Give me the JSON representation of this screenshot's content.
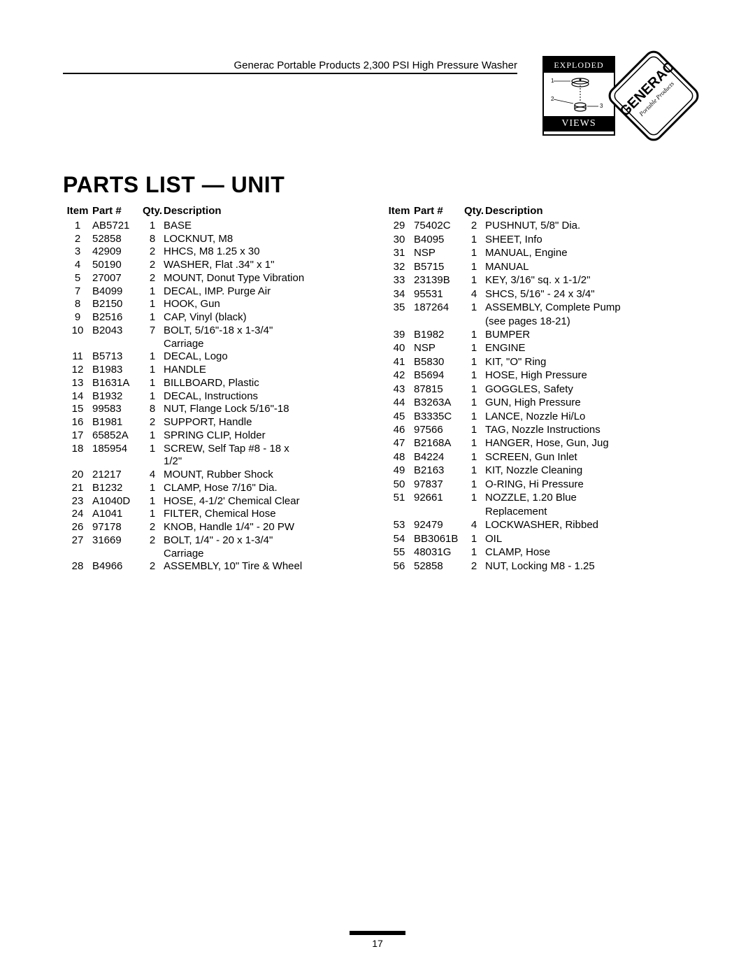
{
  "header": {
    "product_line": "Generac Portable Products 2,300 PSI High Pressure Washer",
    "badge_exploded_top": "EXPLODED",
    "badge_exploded_bottom": "VIEWS",
    "badge_generac": "GENERAC",
    "badge_generac_sub": "Portable Products"
  },
  "title": "PARTS LIST — UNIT",
  "columns": {
    "headers": {
      "item": "Item",
      "part": "Part #",
      "qty": "Qty.",
      "desc": "Description"
    }
  },
  "page_number": "17",
  "left_rows": [
    {
      "item": "1",
      "part": "AB5721",
      "qty": "1",
      "desc": "BASE"
    },
    {
      "item": "2",
      "part": "52858",
      "qty": "8",
      "desc": "LOCKNUT, M8"
    },
    {
      "item": "3",
      "part": "42909",
      "qty": "2",
      "desc": "HHCS, M8 1.25 x 30"
    },
    {
      "item": "4",
      "part": "50190",
      "qty": "2",
      "desc": "WASHER, Flat .34\" x 1\""
    },
    {
      "item": "5",
      "part": "27007",
      "qty": "2",
      "desc": "MOUNT, Donut Type Vibration"
    },
    {
      "item": "7",
      "part": "B4099",
      "qty": "1",
      "desc": "DECAL, IMP. Purge Air"
    },
    {
      "item": "8",
      "part": "B2150",
      "qty": "1",
      "desc": "HOOK, Gun"
    },
    {
      "item": "9",
      "part": "B2516",
      "qty": "1",
      "desc": "CAP, Vinyl (black)"
    },
    {
      "item": "10",
      "part": "B2043",
      "qty": "7",
      "desc": "BOLT, 5/16\"-18 x 1-3/4\""
    },
    {
      "cont": true,
      "desc": "Carriage"
    },
    {
      "item": "11",
      "part": "B5713",
      "qty": "1",
      "desc": "DECAL, Logo"
    },
    {
      "item": "12",
      "part": "B1983",
      "qty": "1",
      "desc": "HANDLE"
    },
    {
      "item": "13",
      "part": "B1631A",
      "qty": "1",
      "desc": "BILLBOARD, Plastic"
    },
    {
      "item": "14",
      "part": "B1932",
      "qty": "1",
      "desc": "DECAL, Instructions"
    },
    {
      "item": "15",
      "part": "99583",
      "qty": "8",
      "desc": "NUT, Flange Lock 5/16\"-18"
    },
    {
      "item": "16",
      "part": "B1981",
      "qty": "2",
      "desc": "SUPPORT, Handle"
    },
    {
      "item": "17",
      "part": "65852A",
      "qty": "1",
      "desc": "SPRING CLIP, Holder"
    },
    {
      "item": "18",
      "part": "185954",
      "qty": "1",
      "desc": "SCREW, Self Tap #8 - 18 x"
    },
    {
      "cont": true,
      "desc": "1/2\""
    },
    {
      "item": "20",
      "part": "21217",
      "qty": "4",
      "desc": "MOUNT, Rubber Shock"
    },
    {
      "item": "21",
      "part": "B1232",
      "qty": "1",
      "desc": "CLAMP, Hose 7/16\" Dia."
    },
    {
      "item": "23",
      "part": "A1040D",
      "qty": "1",
      "desc": "HOSE, 4-1/2' Chemical Clear"
    },
    {
      "item": "24",
      "part": "A1041",
      "qty": "1",
      "desc": "FILTER, Chemical Hose"
    },
    {
      "item": "26",
      "part": "97178",
      "qty": "2",
      "desc": "KNOB, Handle 1/4\" - 20 PW"
    },
    {
      "item": "27",
      "part": "31669",
      "qty": "2",
      "desc": "BOLT, 1/4\" - 20 x 1-3/4\""
    },
    {
      "cont": true,
      "desc": "Carriage"
    },
    {
      "item": "28",
      "part": "B4966",
      "qty": "2",
      "desc": "ASSEMBLY, 10\" Tire & Wheel"
    }
  ],
  "right_rows": [
    {
      "item": "29",
      "part": "75402C",
      "qty": "2",
      "desc": "PUSHNUT, 5/8\" Dia."
    },
    {
      "item": "30",
      "part": "B4095",
      "qty": "1",
      "desc": "SHEET, Info"
    },
    {
      "item": "31",
      "part": "NSP",
      "qty": "1",
      "desc": "MANUAL, Engine"
    },
    {
      "item": "32",
      "part": "B5715",
      "qty": "1",
      "desc": "MANUAL"
    },
    {
      "item": "33",
      "part": "23139B",
      "qty": "1",
      "desc": "KEY, 3/16\" sq. x 1-1/2\""
    },
    {
      "item": "34",
      "part": "95531",
      "qty": "4",
      "desc": "SHCS, 5/16\" - 24 x 3/4\""
    },
    {
      "item": "35",
      "part": "187264",
      "qty": "1",
      "desc": "ASSEMBLY, Complete Pump"
    },
    {
      "cont": true,
      "desc": "(see pages 18-21)"
    },
    {
      "item": "39",
      "part": "B1982",
      "qty": "1",
      "desc": "BUMPER"
    },
    {
      "item": "40",
      "part": "NSP",
      "qty": "1",
      "desc": "ENGINE"
    },
    {
      "item": "41",
      "part": "B5830",
      "qty": "1",
      "desc": "KIT, \"O\" Ring"
    },
    {
      "item": "42",
      "part": "B5694",
      "qty": "1",
      "desc": "HOSE, High Pressure"
    },
    {
      "item": "43",
      "part": "87815",
      "qty": "1",
      "desc": "GOGGLES, Safety"
    },
    {
      "item": "44",
      "part": "B3263A",
      "qty": "1",
      "desc": "GUN, High Pressure"
    },
    {
      "item": "45",
      "part": "B3335C",
      "qty": "1",
      "desc": "LANCE, Nozzle Hi/Lo"
    },
    {
      "item": "46",
      "part": "97566",
      "qty": "1",
      "desc": "TAG, Nozzle Instructions"
    },
    {
      "item": "47",
      "part": "B2168A",
      "qty": "1",
      "desc": "HANGER, Hose, Gun, Jug"
    },
    {
      "item": "48",
      "part": "B4224",
      "qty": "1",
      "desc": "SCREEN, Gun Inlet"
    },
    {
      "item": "49",
      "part": "B2163",
      "qty": "1",
      "desc": "KIT, Nozzle Cleaning"
    },
    {
      "item": "50",
      "part": "97837",
      "qty": "1",
      "desc": "O-RING, Hi Pressure"
    },
    {
      "item": "51",
      "part": "92661",
      "qty": "1",
      "desc": "NOZZLE, 1.20 Blue"
    },
    {
      "cont": true,
      "desc": "Replacement"
    },
    {
      "item": "53",
      "part": "92479",
      "qty": "4",
      "desc": "LOCKWASHER, Ribbed"
    },
    {
      "item": "54",
      "part": "BB3061B",
      "qty": "1",
      "desc": "OIL"
    },
    {
      "item": "55",
      "part": "48031G",
      "qty": "1",
      "desc": "CLAMP, Hose"
    },
    {
      "item": "56",
      "part": "52858",
      "qty": "2",
      "desc": "NUT, Locking M8 - 1.25"
    }
  ]
}
